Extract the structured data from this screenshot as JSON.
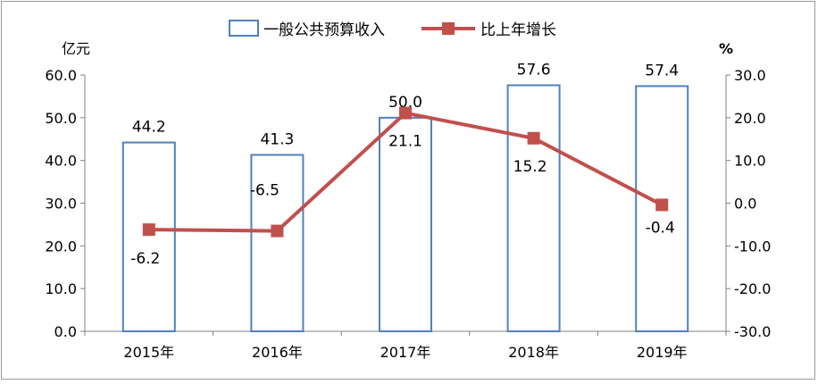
{
  "chart_data": {
    "type": "bar+line",
    "categories": [
      "2015年",
      "2016年",
      "2017年",
      "2018年",
      "2019年"
    ],
    "bar_series": {
      "name": "一般公共预算收入",
      "values": [
        44.2,
        41.3,
        50.0,
        57.6,
        57.4
      ],
      "labels": [
        "44.2",
        "41.3",
        "50.0",
        "57.6",
        "57.4"
      ],
      "color": "#4f81bd"
    },
    "line_series": {
      "name": "比上年增长",
      "values": [
        -6.2,
        -6.5,
        21.1,
        15.2,
        -0.4
      ],
      "labels": [
        "-6.2",
        "-6.5",
        "21.1",
        "15.2",
        "-0.4"
      ],
      "color": "#c0504d"
    },
    "left_axis": {
      "unit": "亿元",
      "ticks": [
        "60.0",
        "50.0",
        "40.0",
        "30.0",
        "20.0",
        "10.0",
        "0.0"
      ],
      "range": [
        0,
        60
      ]
    },
    "right_axis": {
      "unit": "%",
      "ticks": [
        "30.0",
        "20.0",
        "10.0",
        "0.0",
        "-10.0",
        "-20.0",
        "-30.0"
      ],
      "range": [
        -30,
        30
      ]
    },
    "legend_position": "top",
    "grid": false
  }
}
